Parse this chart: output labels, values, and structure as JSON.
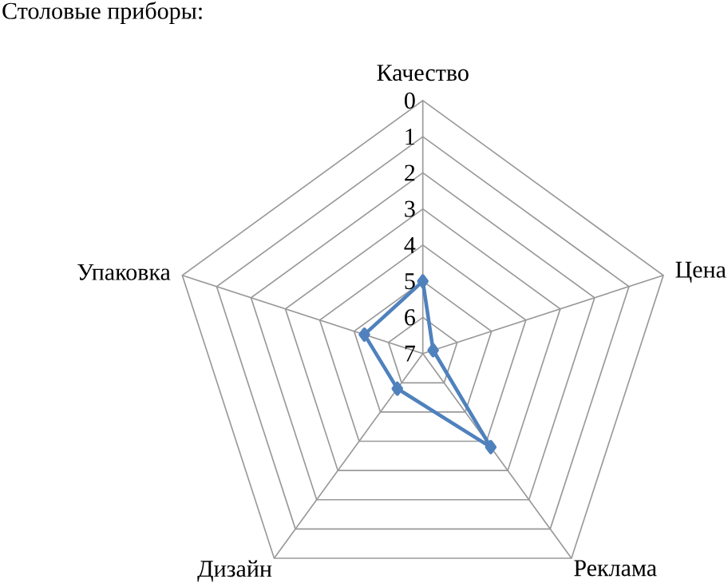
{
  "chart_data": {
    "type": "radar",
    "title": "Столовые приборы:",
    "categories": [
      "Качество",
      "Цена",
      "Реклама",
      "Дизайн",
      "Упаковка"
    ],
    "series": [
      {
        "color": "#4f81bd",
        "values": [
          5,
          6.7,
          3.8,
          5.8,
          5.3
        ]
      }
    ],
    "ylim": [
      7,
      0
    ],
    "yticks": [
      0,
      1,
      2,
      3,
      4,
      5,
      6,
      7
    ],
    "grid": true,
    "marker": "diamond",
    "line_style": "solid"
  }
}
